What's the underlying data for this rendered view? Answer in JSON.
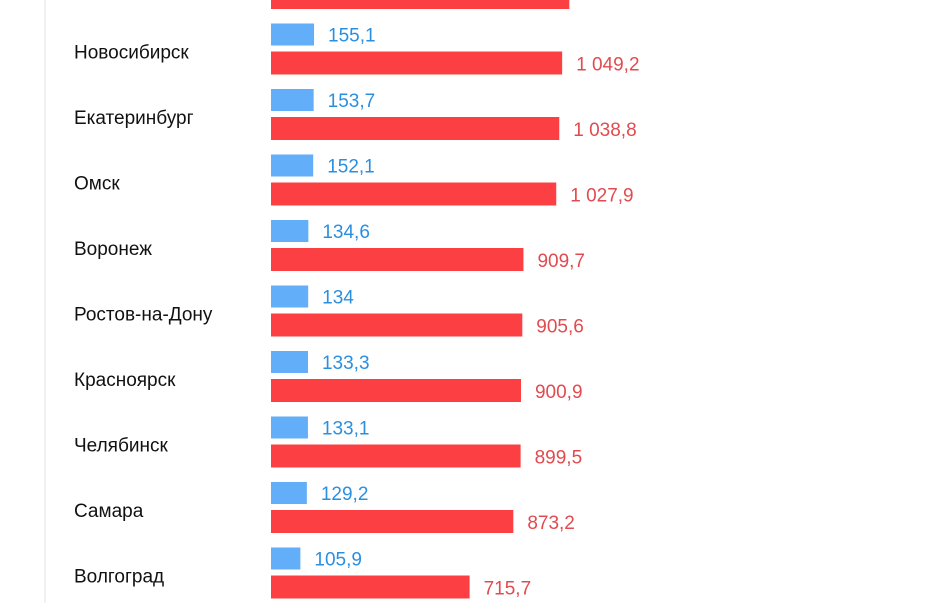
{
  "chart_data": {
    "type": "bar",
    "orientation": "horizontal",
    "categories": [
      "",
      "Новосибирск",
      "Екатеринбург",
      "Омск",
      "Воронеж",
      "Ростов-на-Дону",
      "Красноярск",
      "Челябинск",
      "Самара",
      "Волгоград"
    ],
    "series": [
      {
        "color": "#63aef8",
        "label_color": "#2b8fe0",
        "values": [
          null,
          155.1,
          153.7,
          152.1,
          134.6,
          134,
          133.3,
          133.1,
          129.2,
          105.9
        ],
        "value_labels": [
          "",
          "155,1",
          "153,7",
          "152,1",
          "134,6",
          "134",
          "133,3",
          "133,1",
          "129,2",
          "105,9"
        ]
      },
      {
        "color": "#fc3f42",
        "label_color": "#e14b4f",
        "values": [
          1075,
          1049.2,
          1038.8,
          1027.9,
          909.7,
          905.6,
          900.9,
          899.5,
          873.2,
          715.7
        ],
        "value_labels": [
          "",
          "1 049,2",
          "1 038,8",
          "1 027,9",
          "909,7",
          "905,6",
          "900,9",
          "899,5",
          "873,2",
          "715,7"
        ]
      }
    ],
    "xlim": [
      0,
      1100
    ],
    "grid": false,
    "legend": "none"
  }
}
